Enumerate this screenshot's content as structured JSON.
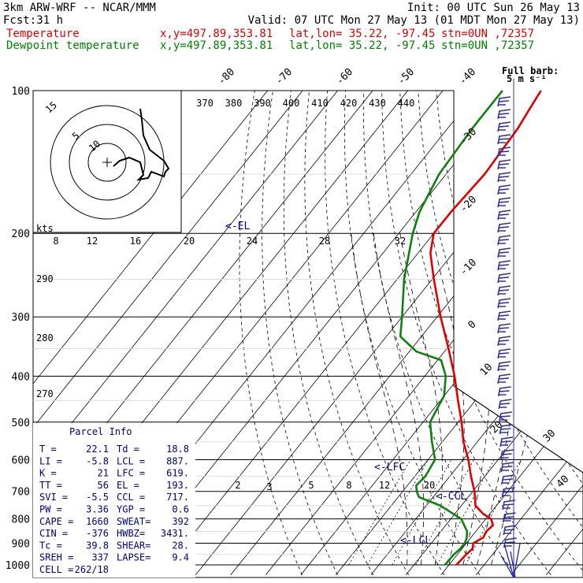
{
  "header": {
    "model": "3km ARW-WRF -- NCAR/MMM",
    "init": "Init: 00 UTC Sun 26 May 13",
    "fcst_label": "Fcst:",
    "fcst_value": "31 h",
    "valid": "Valid: 07 UTC Mon 27 May 13 (01 MDT Mon 27 May 13)",
    "temp_label": "Temperature",
    "dew_label": "Dewpoint temperature",
    "xy": "x,y=497.89,353.81",
    "latlon": "lat,lon= 35.22, -97.45",
    "stn": "stn=0UN ,72357"
  },
  "colors": {
    "temperature": "#e00000",
    "dewpoint": "#108010",
    "labels_blue": "#000080",
    "wind_barbs": "#3030a0"
  },
  "chart_data": {
    "type": "line",
    "title": "",
    "y_axis": {
      "label": "pressure (hPa)",
      "scale": "log",
      "ticks": [
        100,
        200,
        300,
        400,
        500,
        600,
        700,
        800,
        900,
        1000
      ]
    },
    "isotherm_labels": [
      "-80",
      "-70",
      "-60",
      "-50",
      "-40",
      "-30",
      "-20",
      "-10",
      "0",
      "10",
      "20",
      "30",
      "40"
    ],
    "theta_e_labels": [
      "370",
      "380",
      "390",
      "400",
      "410",
      "420",
      "430",
      "440"
    ],
    "theta_labels": [
      "290",
      "280",
      "270"
    ],
    "mixing_ratio_labels": [
      "2",
      "3",
      "5",
      "8",
      "12",
      "20"
    ],
    "wind_speed_scale": {
      "label": "kts",
      "ticks": [
        "8",
        "12",
        "16",
        "20",
        "24",
        "28",
        "32"
      ]
    },
    "series": [
      {
        "name": "Temperature",
        "points": [
          [
            1000,
            22.1
          ],
          [
            950,
            22.5
          ],
          [
            925,
            23.0
          ],
          [
            900,
            22.0
          ],
          [
            875,
            23.5
          ],
          [
            850,
            23.0
          ],
          [
            825,
            23.5
          ],
          [
            800,
            21.5
          ],
          [
            780,
            18.0
          ],
          [
            750,
            14.0
          ],
          [
            700,
            10.5
          ],
          [
            650,
            6.0
          ],
          [
            600,
            1.5
          ],
          [
            550,
            -4.0
          ],
          [
            500,
            -9.0
          ],
          [
            450,
            -15.0
          ],
          [
            400,
            -21.5
          ],
          [
            350,
            -29.5
          ],
          [
            300,
            -39.0
          ],
          [
            250,
            -49.5
          ],
          [
            220,
            -56.5
          ],
          [
            200,
            -60.0
          ],
          [
            180,
            -60.0
          ],
          [
            150,
            -59.0
          ],
          [
            120,
            -60.0
          ],
          [
            110,
            -61.0
          ],
          [
            100,
            -62.0
          ]
        ]
      },
      {
        "name": "Dewpoint temperature",
        "points": [
          [
            1000,
            18.8
          ],
          [
            950,
            19.0
          ],
          [
            925,
            19.5
          ],
          [
            900,
            19.5
          ],
          [
            880,
            19.0
          ],
          [
            850,
            17.5
          ],
          [
            800,
            13.0
          ],
          [
            750,
            4.0
          ],
          [
            720,
            -4.0
          ],
          [
            700,
            -6.0
          ],
          [
            680,
            -7.5
          ],
          [
            650,
            -7.0
          ],
          [
            600,
            -8.0
          ],
          [
            550,
            -13.0
          ],
          [
            500,
            -18.0
          ],
          [
            470,
            -19.0
          ],
          [
            440,
            -20.0
          ],
          [
            400,
            -24.0
          ],
          [
            370,
            -29.0
          ],
          [
            355,
            -38.0
          ],
          [
            330,
            -46.0
          ],
          [
            300,
            -50.0
          ],
          [
            250,
            -58.0
          ],
          [
            200,
            -66.0
          ],
          [
            180,
            -69.0
          ],
          [
            150,
            -72.0
          ],
          [
            120,
            -73.0
          ],
          [
            110,
            -73.0
          ],
          [
            100,
            -73.0
          ]
        ]
      }
    ],
    "level_markers": [
      "<-EL",
      "<-LFC",
      "<-CCL",
      "<-LCL"
    ],
    "hodograph": {
      "ring_labels": [
        "5",
        "10",
        "15"
      ]
    }
  },
  "parcel_info": {
    "title": "Parcel Info",
    "rows": [
      [
        "T  =",
        "22.1",
        "Td =",
        "18.8"
      ],
      [
        "LI =",
        "-5.8",
        "LCL =",
        "887."
      ],
      [
        "K  =",
        "21",
        "LFC =",
        "619."
      ],
      [
        "TT =",
        "56",
        "EL  =",
        "193."
      ],
      [
        "SVI =",
        "-5.5",
        "CCL =",
        "717."
      ],
      [
        "PW =",
        "3.36",
        "YGP =",
        "0.6"
      ],
      [
        "CAPE =",
        "1660",
        "SWEAT=",
        "392"
      ],
      [
        "CIN =",
        "-376",
        "HWBZ=",
        "3431."
      ],
      [
        "Tc =",
        "39.8",
        "SHEAR=",
        "28."
      ],
      [
        "SREH =",
        "337",
        "LAPSE=",
        "9.4"
      ],
      [
        "CELL =",
        "262/18",
        "",
        ""
      ]
    ]
  },
  "barb_legend": {
    "line1": "Full barb:",
    "line2": "5 m s⁻¹"
  }
}
